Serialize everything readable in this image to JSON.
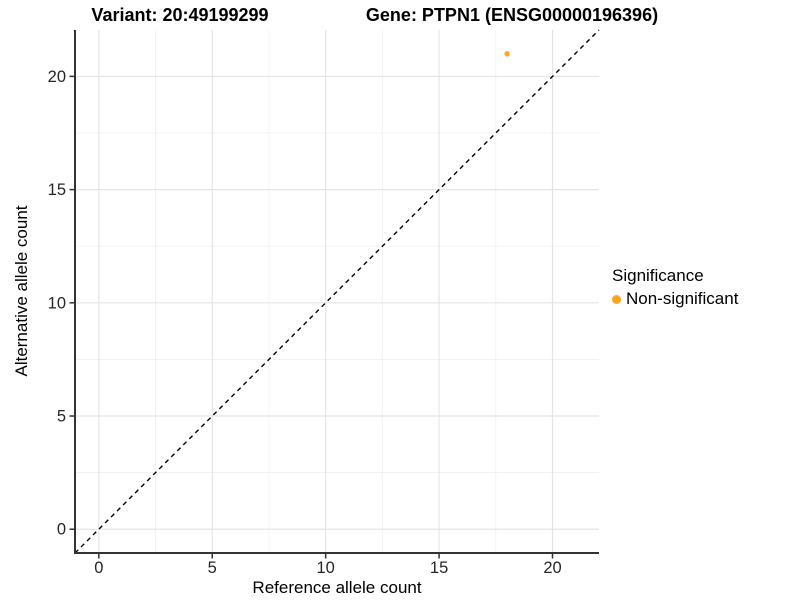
{
  "figure": {
    "title_variant": "Variant: 20:49199299",
    "title_gene": "Gene: PTPN1 (ENSG00000196396)"
  },
  "chart_data": {
    "type": "scatter",
    "title": "Variant: 20:49199299    Gene: PTPN1 (ENSG00000196396)",
    "xlabel": "Reference allele count",
    "ylabel": "Alternative allele count",
    "xlim": [
      -1.05,
      22.05
    ],
    "ylim": [
      -1.05,
      22.05
    ],
    "xticks": [
      0,
      5,
      10,
      15,
      20
    ],
    "yticks": [
      0,
      5,
      10,
      15,
      20
    ],
    "minor_xticks": [
      2.5,
      7.5,
      12.5,
      17.5
    ],
    "minor_yticks": [
      2.5,
      7.5,
      12.5,
      17.5
    ],
    "grid": "major+minor",
    "reference_line": {
      "kind": "identity y=x",
      "style": "dashed",
      "color": "#000000"
    },
    "series": [
      {
        "name": "Non-significant",
        "color": "#FFA320",
        "points": [
          {
            "x": 18,
            "y": 21
          }
        ]
      }
    ],
    "legend": {
      "title": "Significance",
      "position": "right",
      "entries": [
        {
          "label": "Non-significant",
          "color": "#FFA320"
        }
      ]
    },
    "style_colors": {
      "axis_line": "#333333",
      "tick_label": "#262626",
      "grid_major": "#e5e5e5",
      "grid_minor": "#f1f1f1"
    }
  }
}
